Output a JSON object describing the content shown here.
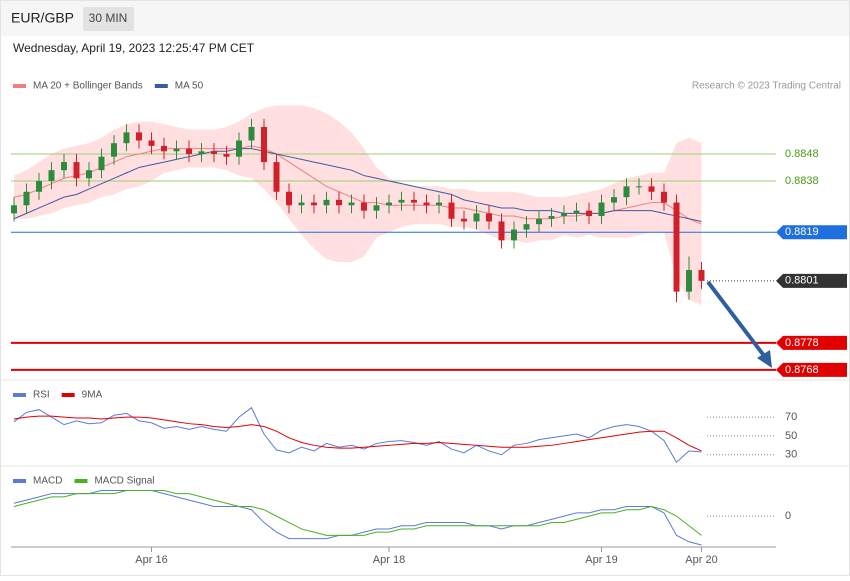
{
  "header": {
    "symbol": "EUR/GBP",
    "interval": "30 MIN",
    "timestamp": "Wednesday, April 19, 2023 12:25:47 PM CET"
  },
  "chart_data": [
    {
      "type": "candlestick",
      "source": "Research © 2023 Trading Central",
      "categories": [
        null,
        null,
        null,
        null,
        null,
        null,
        null,
        null,
        null,
        null,
        null,
        "Apr 16",
        null,
        null,
        null,
        null,
        null,
        null,
        null,
        null,
        null,
        null,
        null,
        null,
        null,
        null,
        null,
        null,
        null,
        null,
        "Apr 18",
        null,
        null,
        null,
        null,
        null,
        null,
        null,
        null,
        null,
        null,
        null,
        null,
        null,
        null,
        null,
        null,
        "Apr 19",
        null,
        null,
        null,
        null,
        null,
        null,
        null,
        "Apr 20"
      ],
      "ylim": [
        0.8765,
        0.8868
      ],
      "up_color": "#2e8b3e",
      "down_color": "#d0202a",
      "candles": {
        "open": [
          0.8826,
          0.8829,
          0.8834,
          0.8838,
          0.8842,
          0.8845,
          0.8839,
          0.8842,
          0.8847,
          0.8852,
          0.8856,
          0.8853,
          0.8851,
          0.8849,
          0.885,
          0.8848,
          0.8849,
          0.8848,
          0.8847,
          0.8853,
          0.8858,
          0.8845,
          0.8834,
          0.8829,
          0.883,
          0.8829,
          0.8831,
          0.8829,
          0.883,
          0.8827,
          0.8829,
          0.883,
          0.8831,
          0.883,
          0.8829,
          0.883,
          0.8824,
          0.8823,
          0.8826,
          0.8823,
          0.8816,
          0.882,
          0.8822,
          0.8824,
          0.8825,
          0.8826,
          0.8827,
          0.8825,
          0.883,
          0.8832,
          0.8836,
          0.8836,
          0.8834,
          0.883,
          0.8797,
          0.8805
        ],
        "high": [
          0.8832,
          0.8837,
          0.8841,
          0.8845,
          0.8848,
          0.8848,
          0.8845,
          0.885,
          0.8855,
          0.8859,
          0.8859,
          0.8856,
          0.8854,
          0.8853,
          0.8853,
          0.8852,
          0.8852,
          0.8851,
          0.8856,
          0.8861,
          0.8861,
          0.8848,
          0.8837,
          0.8833,
          0.8833,
          0.8834,
          0.8834,
          0.8833,
          0.8833,
          0.8832,
          0.8833,
          0.8834,
          0.8834,
          0.8833,
          0.8833,
          0.8833,
          0.8827,
          0.8829,
          0.8829,
          0.8826,
          0.8823,
          0.8825,
          0.8827,
          0.8828,
          0.8829,
          0.883,
          0.883,
          0.8833,
          0.8835,
          0.8839,
          0.8839,
          0.8839,
          0.8837,
          0.8833,
          0.881,
          0.8808
        ],
        "low": [
          0.8823,
          0.8826,
          0.8831,
          0.8835,
          0.8839,
          0.8836,
          0.8836,
          0.8839,
          0.8844,
          0.8849,
          0.885,
          0.8848,
          0.8846,
          0.8846,
          0.8845,
          0.8845,
          0.8845,
          0.8844,
          0.8844,
          0.885,
          0.8842,
          0.8831,
          0.8826,
          0.8826,
          0.8826,
          0.8826,
          0.8826,
          0.8826,
          0.8824,
          0.8824,
          0.8826,
          0.8827,
          0.8827,
          0.8826,
          0.8826,
          0.8821,
          0.882,
          0.882,
          0.882,
          0.8813,
          0.8813,
          0.8817,
          0.8819,
          0.8821,
          0.8822,
          0.8823,
          0.8822,
          0.8822,
          0.8827,
          0.8829,
          0.8833,
          0.8831,
          0.8827,
          0.8793,
          0.8794,
          0.8798
        ],
        "close": [
          0.8829,
          0.8834,
          0.8838,
          0.8842,
          0.8845,
          0.8839,
          0.8842,
          0.8847,
          0.8852,
          0.8856,
          0.8853,
          0.8851,
          0.8849,
          0.885,
          0.8848,
          0.8849,
          0.8848,
          0.8847,
          0.8853,
          0.8858,
          0.8845,
          0.8834,
          0.8829,
          0.883,
          0.8829,
          0.8831,
          0.8829,
          0.883,
          0.8827,
          0.8829,
          0.883,
          0.8831,
          0.883,
          0.8829,
          0.883,
          0.8824,
          0.8823,
          0.8826,
          0.8823,
          0.8816,
          0.882,
          0.8822,
          0.8824,
          0.8825,
          0.8826,
          0.8827,
          0.8825,
          0.883,
          0.8832,
          0.8836,
          0.8836,
          0.8834,
          0.883,
          0.8797,
          0.8805,
          0.8801
        ]
      },
      "bands": {
        "color": "#ffd9d9",
        "upper": [
          0.884,
          0.8842,
          0.8845,
          0.8848,
          0.885,
          0.8851,
          0.8852,
          0.8854,
          0.8857,
          0.8859,
          0.886,
          0.886,
          0.8859,
          0.8858,
          0.8857,
          0.8857,
          0.8857,
          0.8858,
          0.886,
          0.8863,
          0.8865,
          0.8866,
          0.8866,
          0.8866,
          0.8865,
          0.8863,
          0.886,
          0.8856,
          0.885,
          0.8843,
          0.8839,
          0.8837,
          0.8836,
          0.8836,
          0.8836,
          0.8835,
          0.8835,
          0.8834,
          0.8834,
          0.8834,
          0.8834,
          0.8833,
          0.8832,
          0.8832,
          0.8832,
          0.8833,
          0.8834,
          0.8835,
          0.8837,
          0.8839,
          0.884,
          0.8841,
          0.8841,
          0.8852,
          0.8854,
          0.8852
        ],
        "lower": [
          0.8824,
          0.8824,
          0.8825,
          0.8826,
          0.8828,
          0.8829,
          0.883,
          0.8832,
          0.8833,
          0.8835,
          0.8836,
          0.8838,
          0.8841,
          0.8842,
          0.8843,
          0.8843,
          0.8843,
          0.8842,
          0.884,
          0.8839,
          0.8835,
          0.883,
          0.8824,
          0.8818,
          0.8813,
          0.8809,
          0.8808,
          0.8808,
          0.881,
          0.8817,
          0.8819,
          0.8821,
          0.8822,
          0.8822,
          0.8822,
          0.8821,
          0.8821,
          0.882,
          0.8818,
          0.8816,
          0.8816,
          0.8815,
          0.8816,
          0.8816,
          0.8818,
          0.8817,
          0.8818,
          0.8817,
          0.8817,
          0.8817,
          0.8818,
          0.8819,
          0.8819,
          0.8802,
          0.8794,
          0.8792
        ]
      },
      "series": [
        {
          "name": "MA 20 + Bollinger Bands",
          "color": "#f08080",
          "values": [
            0.8832,
            0.8833,
            0.8835,
            0.8837,
            0.8839,
            0.884,
            0.8841,
            0.8843,
            0.8845,
            0.8847,
            0.8848,
            0.8849,
            0.885,
            0.885,
            0.885,
            0.885,
            0.885,
            0.885,
            0.885,
            0.8851,
            0.885,
            0.8848,
            0.8845,
            0.8842,
            0.8839,
            0.8836,
            0.8834,
            0.8832,
            0.883,
            0.883,
            0.8829,
            0.8829,
            0.8829,
            0.8829,
            0.8829,
            0.8828,
            0.8828,
            0.8827,
            0.8826,
            0.8825,
            0.8825,
            0.8824,
            0.8824,
            0.8824,
            0.8825,
            0.8825,
            0.8826,
            0.8826,
            0.8827,
            0.8828,
            0.8829,
            0.883,
            0.883,
            0.8827,
            0.8824,
            0.8822
          ]
        },
        {
          "name": "MA 50",
          "color": "#3b5ba5",
          "values": [
            0.8824,
            0.8826,
            0.8828,
            0.883,
            0.8832,
            0.8833,
            0.8835,
            0.8837,
            0.8839,
            0.8841,
            0.8843,
            0.8844,
            0.8845,
            0.8846,
            0.8847,
            0.8848,
            0.8849,
            0.8849,
            0.885,
            0.885,
            0.8849,
            0.8848,
            0.8847,
            0.8846,
            0.8845,
            0.8844,
            0.8843,
            0.8842,
            0.884,
            0.8839,
            0.8838,
            0.8837,
            0.8836,
            0.8835,
            0.8834,
            0.8833,
            0.8831,
            0.883,
            0.8829,
            0.8828,
            0.8828,
            0.8827,
            0.8827,
            0.8827,
            0.8826,
            0.8826,
            0.8826,
            0.8826,
            0.8827,
            0.8827,
            0.8827,
            0.8827,
            0.8826,
            0.8825,
            0.8824,
            0.8823
          ]
        }
      ],
      "levels": [
        {
          "value": 0.8848,
          "color": "#9ccc7a",
          "text_color": "#4a9a1a",
          "tag": false,
          "style": "solid"
        },
        {
          "value": 0.8838,
          "color": "#9ccc7a",
          "text_color": "#4a9a1a",
          "tag": false,
          "style": "solid"
        },
        {
          "value": 0.8819,
          "color": "#1f6fe0",
          "text_color": "#ffffff",
          "tag": true,
          "style": "solid"
        },
        {
          "value": 0.8801,
          "color": "#333333",
          "text_color": "#ffffff",
          "tag": true,
          "style": "dotted"
        },
        {
          "value": 0.8778,
          "color": "#e00000",
          "text_color": "#ffffff",
          "tag": true,
          "style": "thick"
        },
        {
          "value": 0.8768,
          "color": "#e00000",
          "text_color": "#ffffff",
          "tag": true,
          "style": "thick"
        }
      ]
    },
    {
      "type": "line",
      "ylim": [
        18,
        85
      ],
      "yticks": [
        70,
        50,
        30
      ],
      "series": [
        {
          "name": "RSI",
          "color": "#5b7bd5",
          "values": [
            65,
            75,
            78,
            70,
            62,
            66,
            63,
            64,
            72,
            74,
            66,
            64,
            58,
            60,
            57,
            60,
            57,
            55,
            70,
            80,
            52,
            35,
            32,
            38,
            34,
            42,
            38,
            40,
            36,
            42,
            44,
            45,
            43,
            40,
            44,
            36,
            32,
            40,
            34,
            30,
            40,
            42,
            46,
            48,
            50,
            52,
            48,
            56,
            60,
            62,
            60,
            55,
            45,
            22,
            34,
            33
          ]
        },
        {
          "name": "9MA",
          "color": "#e00000",
          "values": [
            68,
            70,
            71,
            71,
            70,
            69,
            69,
            68,
            69,
            70,
            70,
            69,
            67,
            65,
            63,
            62,
            60,
            59,
            60,
            62,
            60,
            55,
            48,
            43,
            40,
            38,
            37,
            37,
            38,
            39,
            40,
            41,
            42,
            42,
            43,
            42,
            41,
            40,
            39,
            38,
            38,
            38,
            39,
            40,
            42,
            44,
            46,
            48,
            50,
            52,
            54,
            55,
            55,
            48,
            40,
            34
          ]
        }
      ]
    },
    {
      "type": "line",
      "ylim": [
        -9,
        15
      ],
      "yticks": [
        0
      ],
      "series": [
        {
          "name": "MACD",
          "color": "#5b7bd5",
          "values": [
            4,
            5,
            6,
            7,
            7,
            7,
            7,
            8,
            8,
            8,
            8,
            8,
            7,
            6,
            5,
            4,
            3,
            3,
            3,
            2,
            -2,
            -5,
            -7,
            -7,
            -7,
            -7,
            -6,
            -6,
            -5,
            -4,
            -4,
            -3,
            -3,
            -2,
            -2,
            -2,
            -2,
            -3,
            -3,
            -4,
            -3,
            -3,
            -2,
            -1,
            0,
            1,
            1,
            2,
            2,
            3,
            3,
            3,
            1,
            -6,
            -8,
            -9
          ]
        },
        {
          "name": "MACD Signal",
          "color": "#4caf20",
          "values": [
            3,
            4,
            5,
            6,
            6,
            7,
            7,
            7,
            7,
            8,
            8,
            8,
            8,
            7,
            7,
            6,
            5,
            4,
            3,
            3,
            2,
            0,
            -2,
            -4,
            -5,
            -6,
            -6,
            -6,
            -6,
            -5,
            -5,
            -4,
            -4,
            -3,
            -3,
            -3,
            -3,
            -3,
            -3,
            -3,
            -3,
            -3,
            -3,
            -2,
            -2,
            -1,
            0,
            1,
            1,
            2,
            2,
            3,
            2,
            0,
            -3,
            -6
          ]
        }
      ]
    }
  ]
}
